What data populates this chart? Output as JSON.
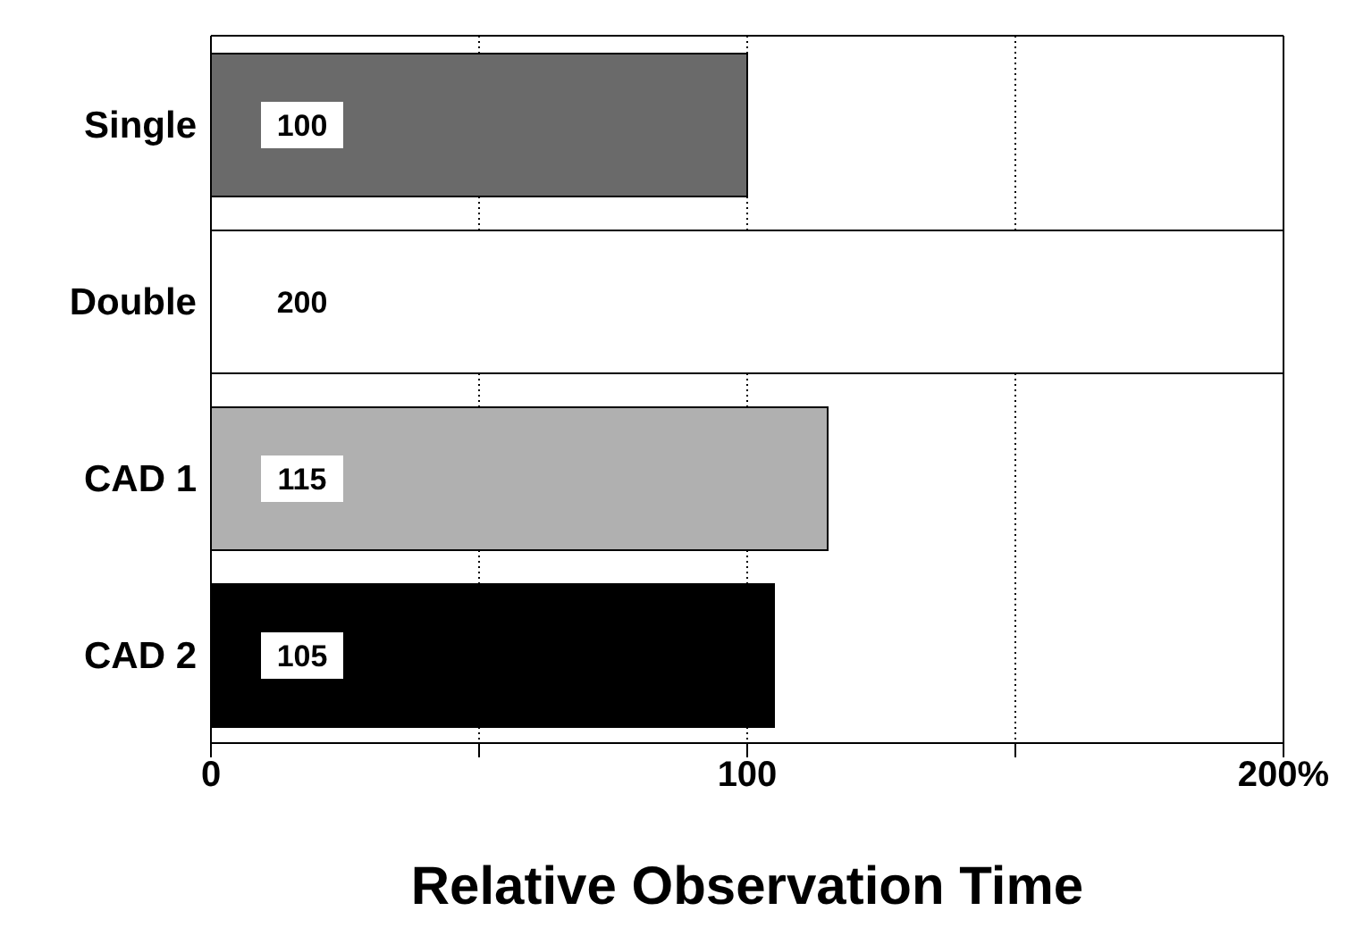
{
  "chart_data": {
    "type": "bar",
    "orientation": "horizontal",
    "categories": [
      "Single",
      "Double",
      "CAD 1",
      "CAD 2"
    ],
    "values": [
      100,
      200,
      115,
      105
    ],
    "colors": [
      "#6a6a6a",
      "#ffffff",
      "#b0b0b0",
      "#000000"
    ],
    "xlim": [
      0,
      200
    ],
    "xticks": [
      0,
      {
        "value": 50,
        "label": null
      },
      100,
      {
        "value": 150,
        "label": null
      },
      {
        "value": 200,
        "label": "200%"
      }
    ],
    "xlabel": "Relative Observation Time",
    "grid": "x",
    "data_labels": true
  }
}
